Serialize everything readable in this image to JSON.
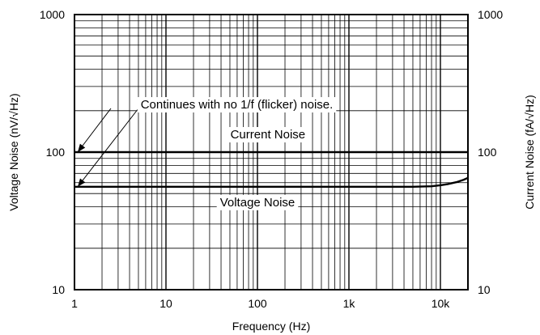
{
  "chart_data": {
    "type": "line",
    "x_scale": "log",
    "y_scale": "log",
    "xlim": [
      1,
      20000
    ],
    "ylim": [
      10,
      1000
    ],
    "grid": true,
    "xlabel": "Frequency (Hz)",
    "ylabel_left": "Voltage Noise (nV/√Hz)",
    "ylabel_right": "Current Noise (fA/√Hz)",
    "x_ticks": [
      {
        "value": 1,
        "label": "1"
      },
      {
        "value": 10,
        "label": "10"
      },
      {
        "value": 100,
        "label": "100"
      },
      {
        "value": 1000,
        "label": "1k"
      },
      {
        "value": 10000,
        "label": "10k"
      }
    ],
    "y_ticks_left": [
      {
        "value": 10,
        "label": "10"
      },
      {
        "value": 100,
        "label": "100"
      },
      {
        "value": 1000,
        "label": "1000"
      }
    ],
    "y_ticks_right": [
      {
        "value": 10,
        "label": "10"
      },
      {
        "value": 100,
        "label": "100"
      },
      {
        "value": 1000,
        "label": "1000"
      }
    ],
    "series": [
      {
        "name": "Current Noise",
        "x": [
          1,
          20000
        ],
        "y": [
          100,
          100
        ]
      },
      {
        "name": "Voltage Noise",
        "x": [
          1,
          100,
          1000,
          5000,
          8000,
          10000,
          12000,
          15000,
          18000,
          20000
        ],
        "y": [
          56,
          56,
          56,
          56,
          56.5,
          57.5,
          58.5,
          60.5,
          63,
          65
        ]
      }
    ],
    "annotations": [
      {
        "text": "Continues with no 1/f (flicker) noise.",
        "arrows_to": [
          {
            "x": 1,
            "y": 100
          },
          {
            "x": 1,
            "y": 56
          }
        ]
      }
    ]
  }
}
